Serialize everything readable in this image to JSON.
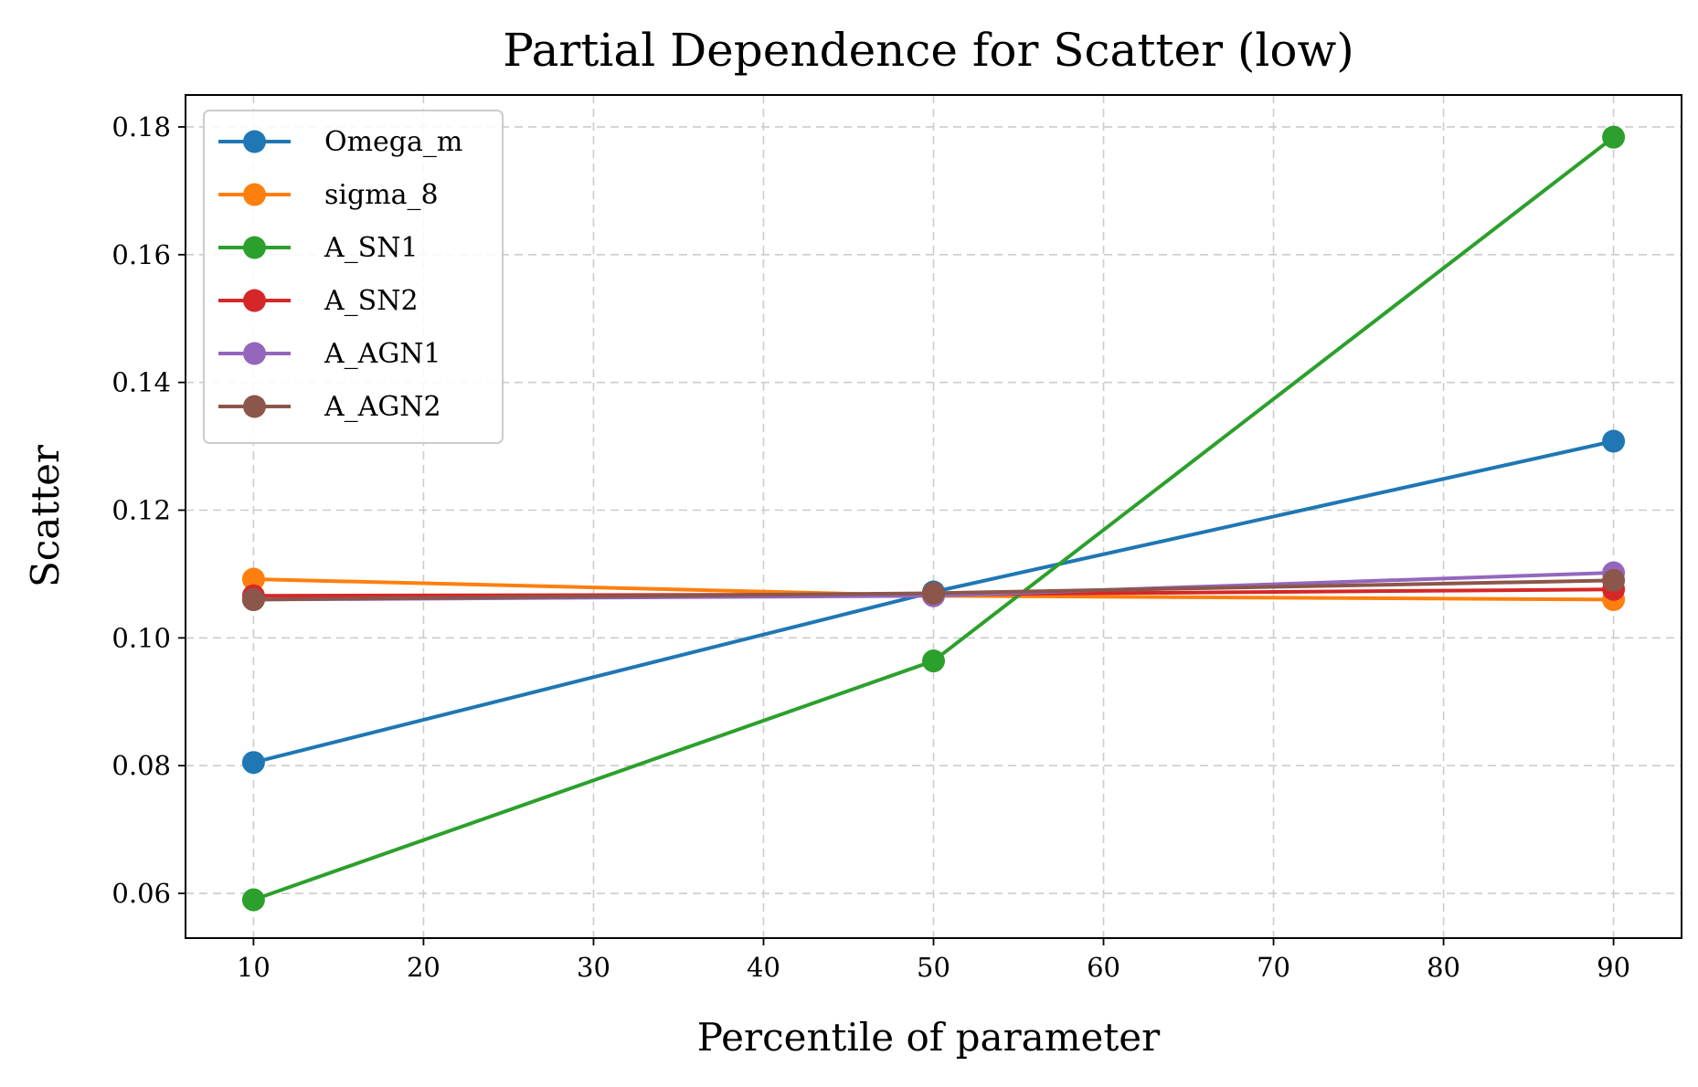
{
  "chart_data": {
    "type": "line",
    "title": "Partial Dependence for Scatter (low)",
    "xlabel": "Percentile of parameter",
    "ylabel": "Scatter",
    "x": [
      10,
      50,
      90
    ],
    "xlim": [
      6,
      94
    ],
    "ylim": [
      0.053,
      0.185
    ],
    "xticks": [
      10,
      20,
      30,
      40,
      50,
      60,
      70,
      80,
      90
    ],
    "yticks": [
      0.06,
      0.08,
      0.1,
      0.12,
      0.14,
      0.16,
      0.18
    ],
    "xtick_labels": [
      "10",
      "20",
      "30",
      "40",
      "50",
      "60",
      "70",
      "80",
      "90"
    ],
    "ytick_labels": [
      "0.06",
      "0.08",
      "0.10",
      "0.12",
      "0.14",
      "0.16",
      "0.18"
    ],
    "grid": true,
    "legend_position": "top-left",
    "series": [
      {
        "name": "Omega_m",
        "label": "Omega_m",
        "color": "#1f77b4",
        "values": [
          0.0805,
          0.1072,
          0.1308
        ]
      },
      {
        "name": "sigma_8",
        "label": "sigma_8",
        "color": "#ff7f0e",
        "values": [
          0.1092,
          0.1066,
          0.106
        ]
      },
      {
        "name": "A_SN1",
        "label": "A_SN1",
        "color": "#2ca02c",
        "values": [
          0.059,
          0.0964,
          0.1784
        ]
      },
      {
        "name": "A_SN2",
        "label": "A_SN2",
        "color": "#d62728",
        "values": [
          0.1066,
          0.1068,
          0.1076
        ]
      },
      {
        "name": "A_AGN1",
        "label": "A_AGN1",
        "color": "#9467bd",
        "values": [
          0.106,
          0.1066,
          0.1102
        ]
      },
      {
        "name": "A_AGN2",
        "label": "A_AGN2",
        "color": "#8c564b",
        "values": [
          0.106,
          0.107,
          0.109
        ]
      }
    ]
  }
}
